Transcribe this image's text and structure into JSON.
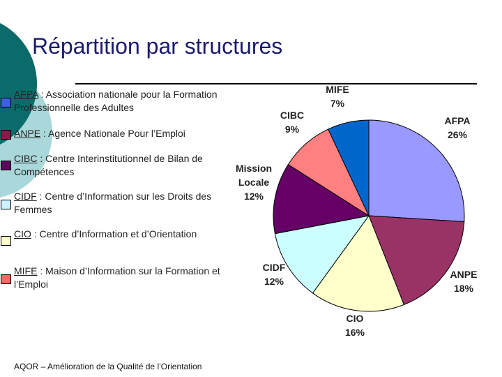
{
  "title": "Répartition par structures",
  "legend": [
    {
      "abbr": "AFPA",
      "text": " : Association nationale pour la Formation Professionnelle des Adultes",
      "color": "#3d5fe0"
    },
    {
      "abbr": "ANPE",
      "text": " : Agence Nationale Pour l’Emploi",
      "color": "#8b1a4a"
    },
    {
      "abbr": "CIBC",
      "text": " : Centre Interinstitutionnel de Bilan de Compétences",
      "color": "#5a0a5a"
    },
    {
      "abbr": "CIDF",
      "text": " : Centre d’Information sur les Droits des Femmes",
      "color": "#ccf2ff"
    },
    {
      "abbr": "CIO",
      "text": " : Centre d’Information et d’Orientation",
      "color": "#ffffcc"
    },
    {
      "abbr": "MIFE",
      "text": " : Maison d’Information sur la Formation et l’Emploi",
      "color": "#ff6666"
    }
  ],
  "footer": "AQOR – Amélioration de la Qualité de l’Orientation",
  "chart_data": {
    "type": "pie",
    "slices": [
      {
        "label": "AFPA",
        "value": 26,
        "pct": "26%",
        "color": "#9999ff"
      },
      {
        "label": "ANPE",
        "value": 18,
        "pct": "18%",
        "color": "#993366"
      },
      {
        "label": "CIO",
        "value": 16,
        "pct": "16%",
        "color": "#ffffcc"
      },
      {
        "label": "CIDF",
        "value": 12,
        "pct": "12%",
        "color": "#ccffff"
      },
      {
        "label": "Mission Locale",
        "value": 12,
        "pct": "12%",
        "color": "#660066"
      },
      {
        "label": "CIBC",
        "value": 9,
        "pct": "9%",
        "color": "#ff8080"
      },
      {
        "label": "MIFE",
        "value": 7,
        "pct": "7%",
        "color": "#0066cc"
      }
    ]
  }
}
